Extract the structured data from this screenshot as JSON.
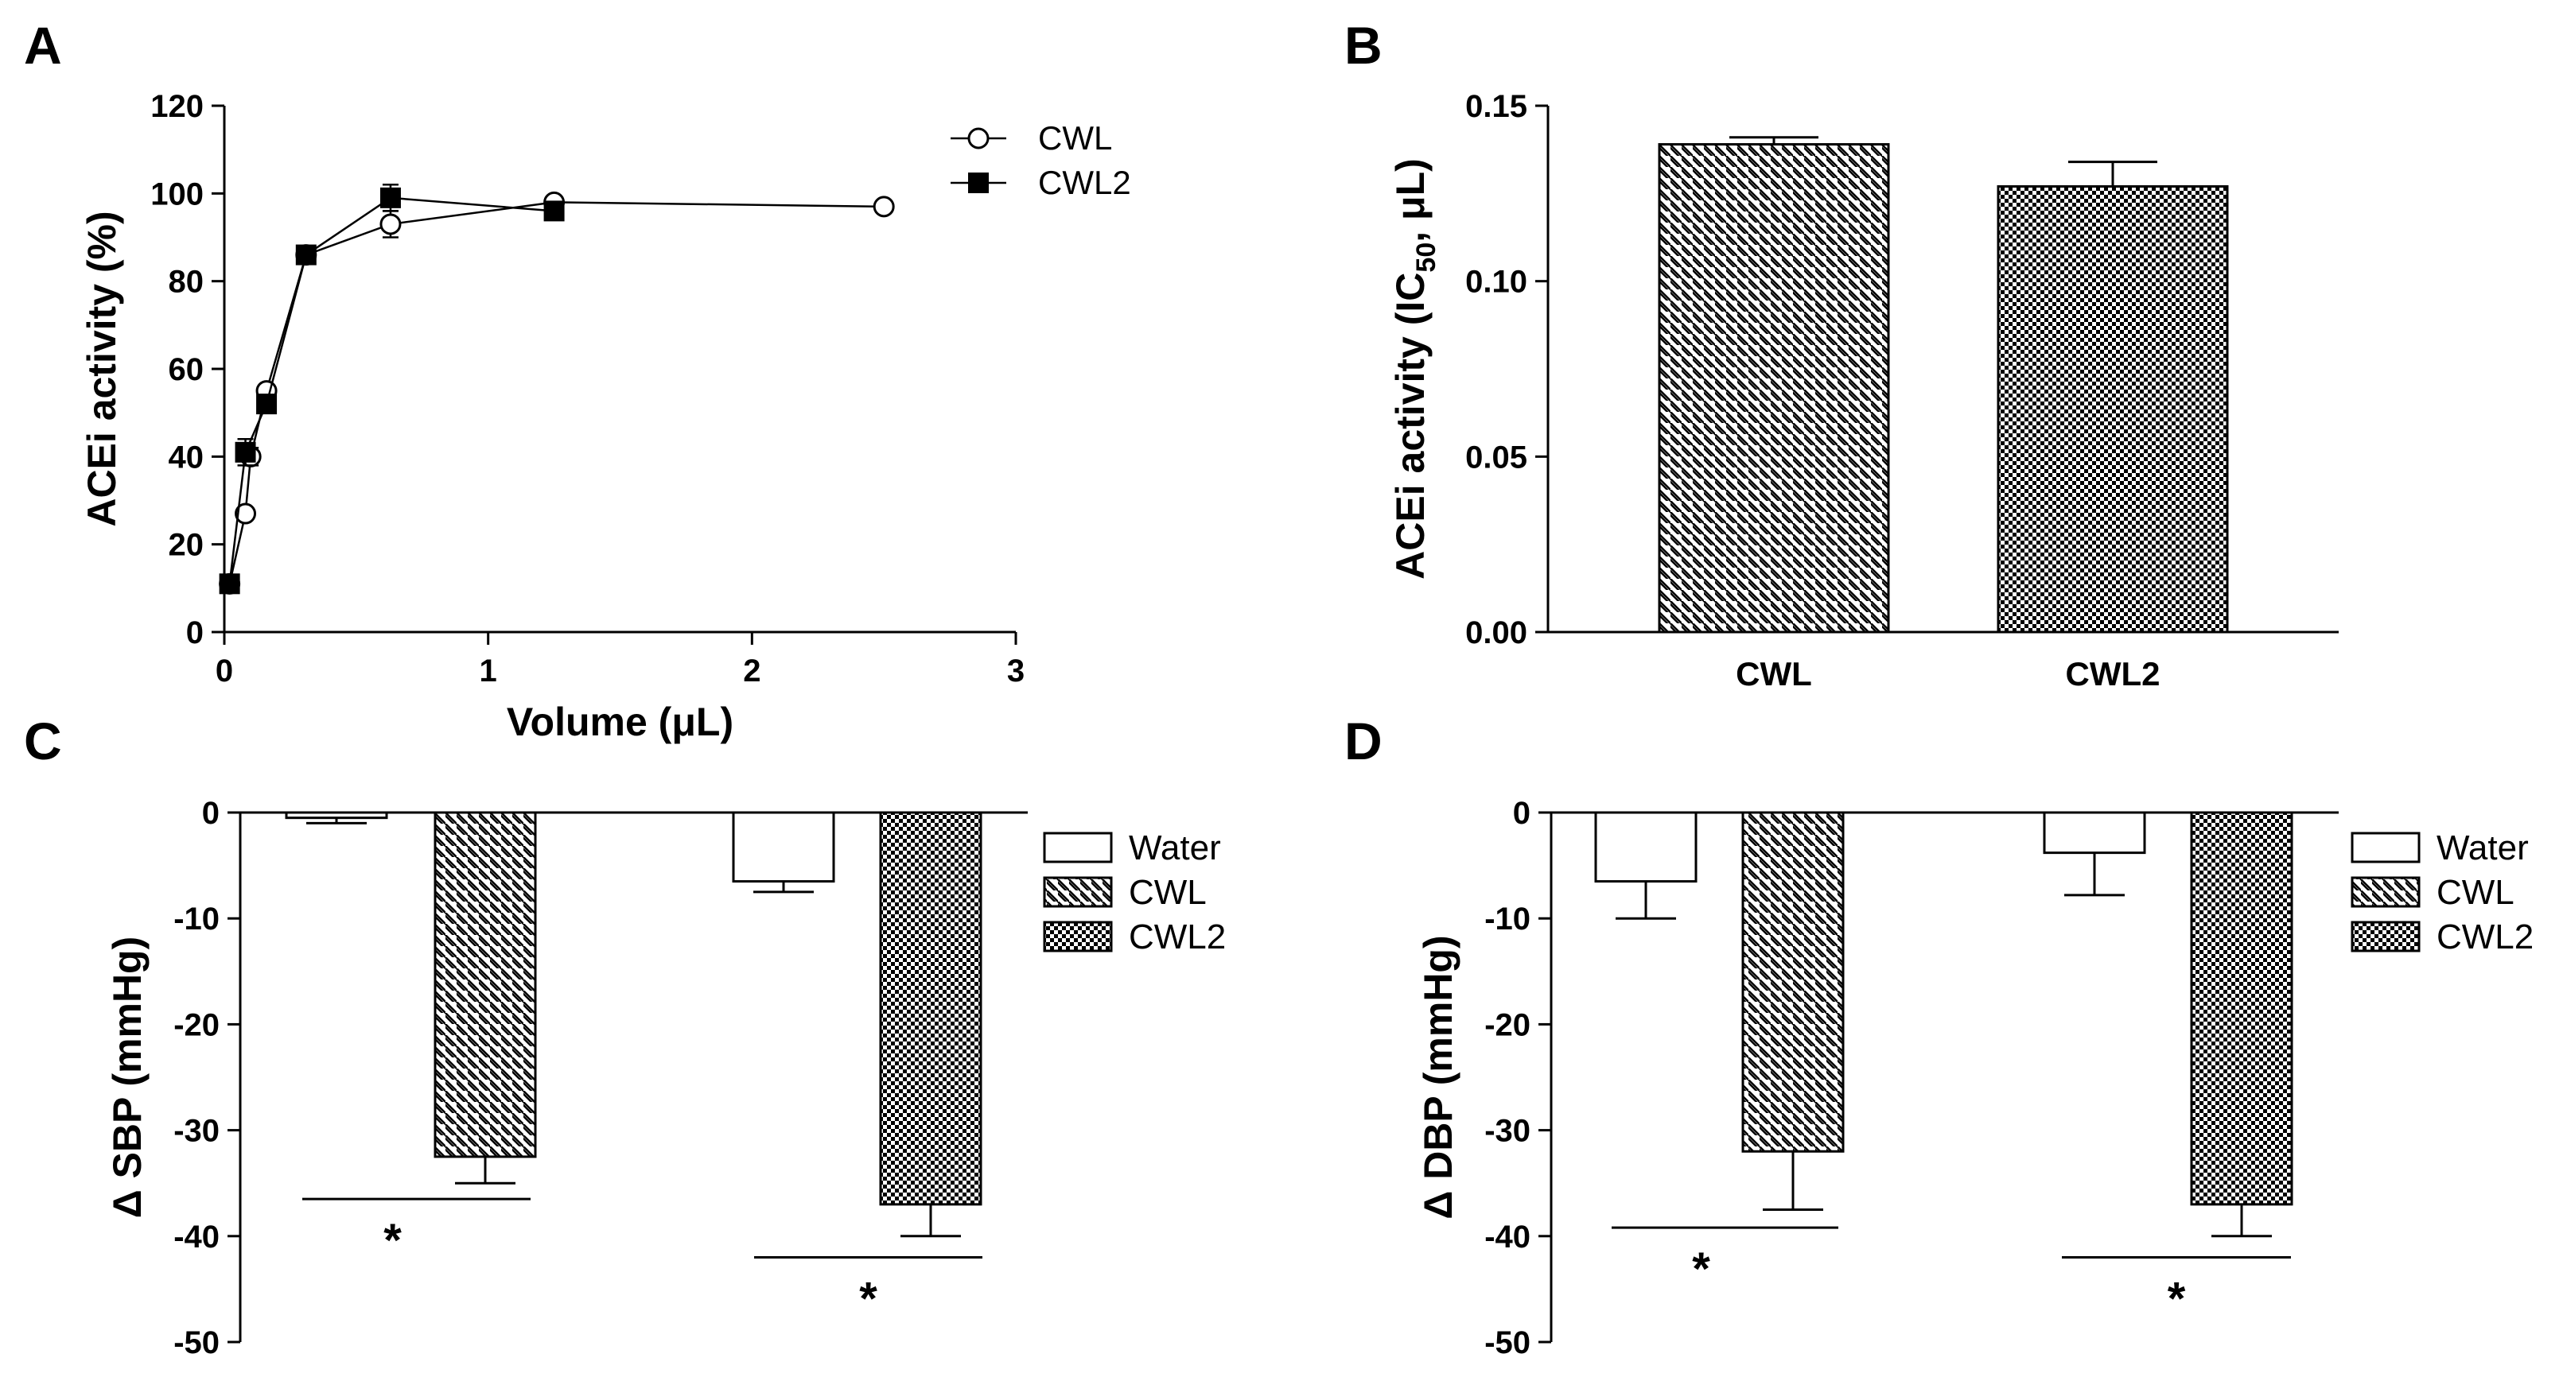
{
  "colors": {
    "ink": "#000000",
    "background": "#ffffff",
    "marker_open": "#ffffff",
    "marker_filled": "#000000"
  },
  "chart_data": [
    {
      "panel": "A",
      "type": "line",
      "xlabel": "Volume (μL)",
      "ylabel": "ACEi activity (%)",
      "xlim": [
        0,
        3
      ],
      "ylim": [
        0,
        120
      ],
      "xticks": [
        0,
        1,
        2,
        3
      ],
      "yticks": [
        0,
        20,
        40,
        60,
        80,
        100,
        120
      ],
      "legend_position": "top-right",
      "series": [
        {
          "name": "CWL",
          "marker": "open-circle",
          "x": [
            0.02,
            0.08,
            0.1,
            0.16,
            0.31,
            0.63,
            1.25,
            2.5
          ],
          "y": [
            11,
            27,
            40,
            55,
            86,
            93,
            98,
            97
          ],
          "err": [
            0,
            0,
            2,
            1,
            2,
            3,
            1,
            0
          ]
        },
        {
          "name": "CWL2",
          "marker": "filled-square",
          "x": [
            0.02,
            0.08,
            0.16,
            0.31,
            0.63,
            1.25
          ],
          "y": [
            11,
            41,
            52,
            86,
            99,
            96
          ],
          "err": [
            0,
            3,
            1,
            1,
            3,
            1
          ]
        }
      ]
    },
    {
      "panel": "B",
      "type": "bar",
      "ylabel_main": "ACEi activity (IC",
      "ylabel_sub": "50",
      "ylabel_end": ", μL)",
      "ylim": [
        0,
        0.15
      ],
      "yticks": [
        "0.00",
        "0.05",
        "0.10",
        "0.15"
      ],
      "categories": [
        "CWL",
        "CWL2"
      ],
      "values": [
        0.139,
        0.127
      ],
      "errors": [
        0.002,
        0.007
      ],
      "patterns": [
        "diagonal",
        "checker"
      ]
    },
    {
      "panel": "C",
      "type": "bar",
      "ylabel": "Δ SBP (mmHg)",
      "ylim": [
        -50,
        0
      ],
      "yticks": [
        "0",
        "-10",
        "-20",
        "-30",
        "-40",
        "-50"
      ],
      "legend": [
        "Water",
        "CWL",
        "CWL2"
      ],
      "groups": [
        {
          "bars": [
            {
              "name": "Water",
              "value": -0.5,
              "error": 0.5,
              "pattern": "white"
            },
            {
              "name": "CWL",
              "value": -32.5,
              "error": 2.5,
              "pattern": "diagonal"
            }
          ],
          "significance": {
            "label": "*",
            "y": -36.5
          }
        },
        {
          "bars": [
            {
              "name": "Water",
              "value": -6.5,
              "error": 1.0,
              "pattern": "white"
            },
            {
              "name": "CWL2",
              "value": -37,
              "error": 3,
              "pattern": "checker"
            }
          ],
          "significance": {
            "label": "*",
            "y": -42
          }
        }
      ]
    },
    {
      "panel": "D",
      "type": "bar",
      "ylabel": "Δ DBP (mmHg)",
      "ylim": [
        -50,
        0
      ],
      "yticks": [
        "0",
        "-10",
        "-20",
        "-30",
        "-40",
        "-50"
      ],
      "legend": [
        "Water",
        "CWL",
        "CWL2"
      ],
      "groups": [
        {
          "bars": [
            {
              "name": "Water",
              "value": -6.5,
              "error": 3.5,
              "pattern": "white"
            },
            {
              "name": "CWL",
              "value": -32,
              "error": 5.5,
              "pattern": "diagonal"
            }
          ],
          "significance": {
            "label": "*",
            "y": -39.2
          }
        },
        {
          "bars": [
            {
              "name": "Water",
              "value": -3.8,
              "error": 4,
              "pattern": "white"
            },
            {
              "name": "CWL2",
              "value": -37,
              "error": 3,
              "pattern": "checker"
            }
          ],
          "significance": {
            "label": "*",
            "y": -42
          }
        }
      ]
    }
  ]
}
